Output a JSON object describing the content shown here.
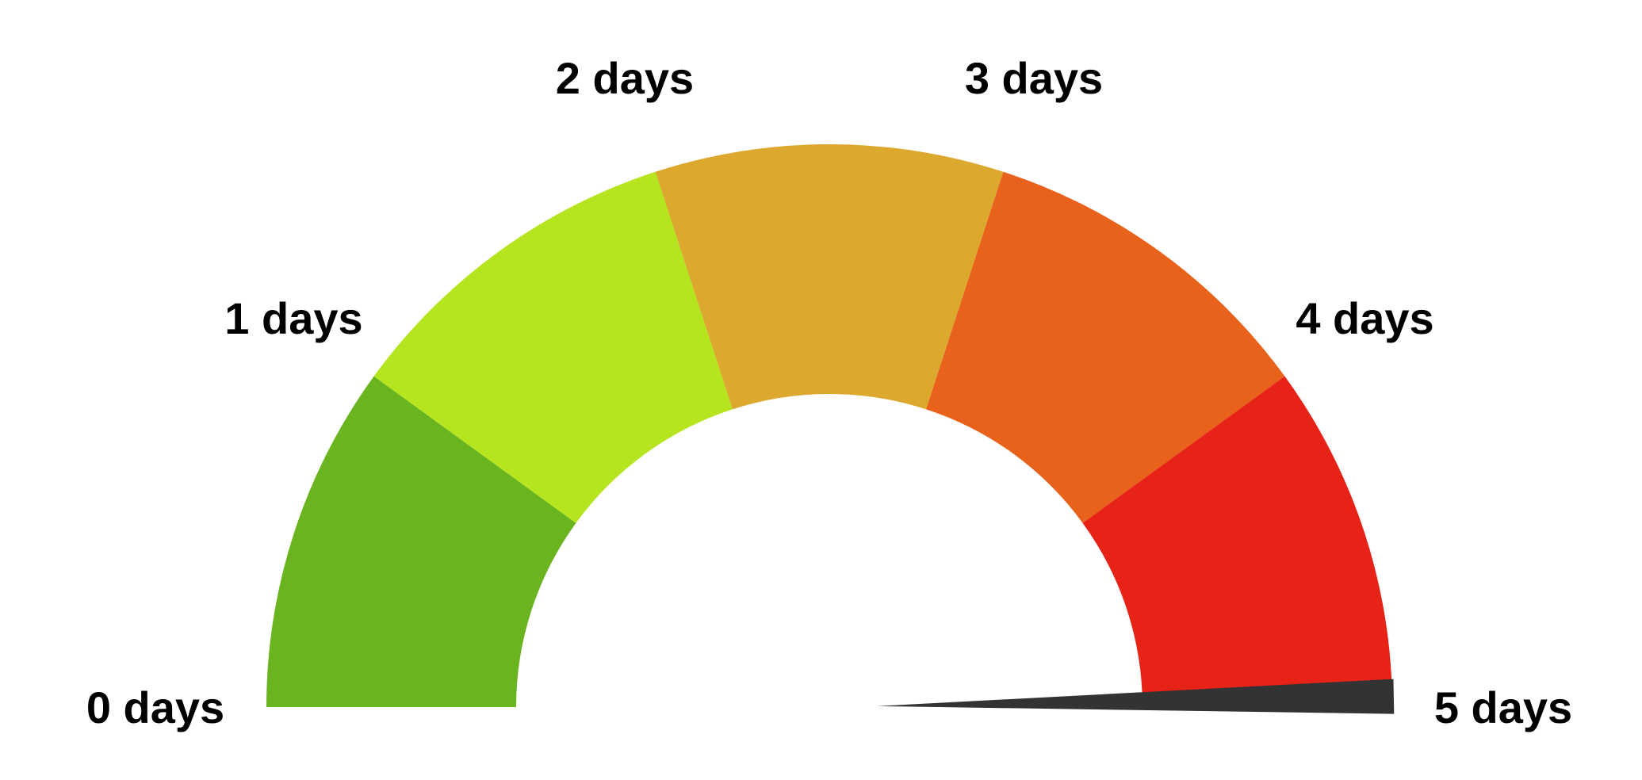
{
  "chart_data": {
    "type": "gauge",
    "min": 0,
    "max": 5,
    "value": 4.97,
    "bands": [
      {
        "from": 0,
        "to": 1,
        "color": "#6ab41f"
      },
      {
        "from": 1,
        "to": 2,
        "color": "#b4e51e"
      },
      {
        "from": 2,
        "to": 3,
        "color": "#dca82d"
      },
      {
        "from": 3,
        "to": 4,
        "color": "#e8621c"
      },
      {
        "from": 4,
        "to": 5,
        "color": "#e72216"
      }
    ],
    "tick_labels": [
      "0 days",
      "1 days",
      "2 days",
      "3 days",
      "4 days",
      "5 days"
    ],
    "needle_color": "#333333"
  }
}
